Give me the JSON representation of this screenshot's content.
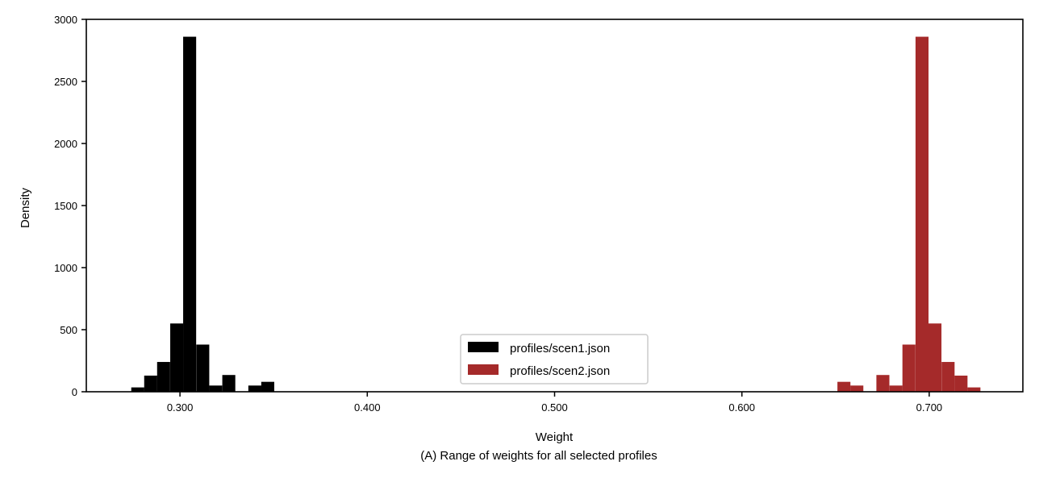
{
  "chart_data": {
    "type": "bar",
    "title": "",
    "xlabel": "Weight",
    "ylabel": "Density",
    "caption": "(A) Range of weights for all selected profiles",
    "xlim": [
      0.25,
      0.75
    ],
    "ylim": [
      0,
      3000
    ],
    "bin_width": 0.00694,
    "x_ticks": [
      {
        "value": 0.3,
        "label": "0.300"
      },
      {
        "value": 0.4,
        "label": "0.400"
      },
      {
        "value": 0.5,
        "label": "0.500"
      },
      {
        "value": 0.6,
        "label": "0.600"
      },
      {
        "value": 0.7,
        "label": "0.700"
      }
    ],
    "y_ticks": [
      {
        "value": 0,
        "label": "0"
      },
      {
        "value": 500,
        "label": "500"
      },
      {
        "value": 1000,
        "label": "1000"
      },
      {
        "value": 1500,
        "label": "1500"
      },
      {
        "value": 2000,
        "label": "2000"
      },
      {
        "value": 2500,
        "label": "2500"
      },
      {
        "value": 3000,
        "label": "3000"
      }
    ],
    "legend_position": "bottom-center",
    "series": [
      {
        "name": "profiles/scen1.json",
        "color": "#000000",
        "bins": [
          {
            "x": 0.274,
            "value": 35
          },
          {
            "x": 0.2809,
            "value": 130
          },
          {
            "x": 0.2878,
            "value": 240
          },
          {
            "x": 0.2948,
            "value": 550
          },
          {
            "x": 0.3017,
            "value": 2860
          },
          {
            "x": 0.3087,
            "value": 380
          },
          {
            "x": 0.3156,
            "value": 50
          },
          {
            "x": 0.3226,
            "value": 135
          },
          {
            "x": 0.3295,
            "value": 0
          },
          {
            "x": 0.3365,
            "value": 50
          },
          {
            "x": 0.3434,
            "value": 80
          }
        ]
      },
      {
        "name": "profiles/scen2.json",
        "color": "#a52a2a",
        "bins": [
          {
            "x": 0.651,
            "value": 80
          },
          {
            "x": 0.6579,
            "value": 50
          },
          {
            "x": 0.6649,
            "value": 0
          },
          {
            "x": 0.6718,
            "value": 135
          },
          {
            "x": 0.6788,
            "value": 50
          },
          {
            "x": 0.6857,
            "value": 380
          },
          {
            "x": 0.6927,
            "value": 2860
          },
          {
            "x": 0.6996,
            "value": 550
          },
          {
            "x": 0.7066,
            "value": 240
          },
          {
            "x": 0.7135,
            "value": 130
          },
          {
            "x": 0.7204,
            "value": 35
          }
        ]
      }
    ]
  }
}
